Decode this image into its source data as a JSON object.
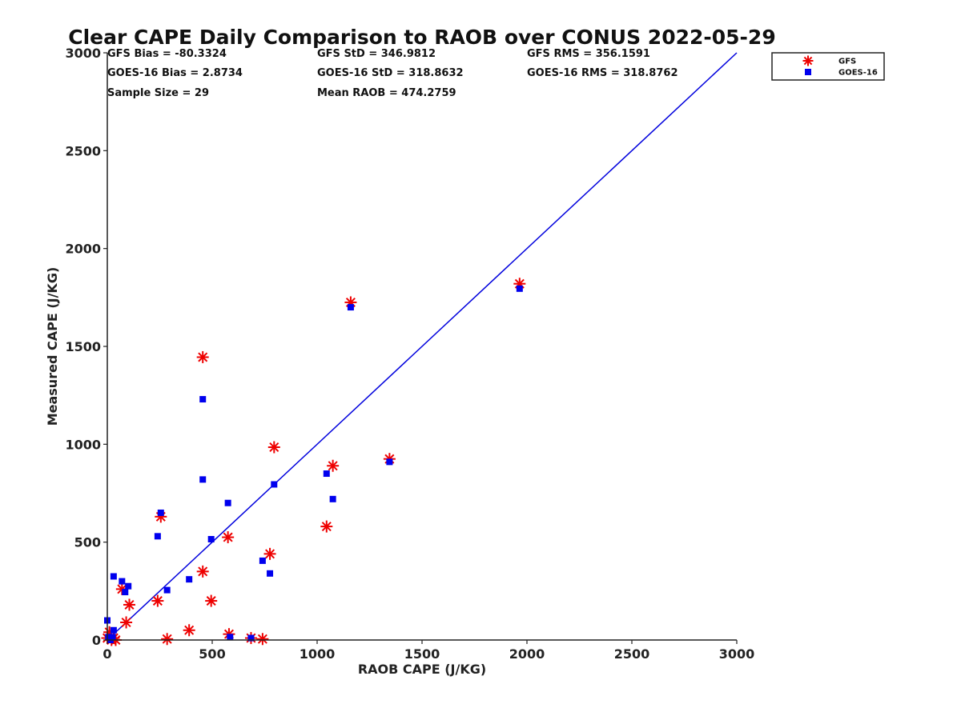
{
  "chart_data": {
    "type": "scatter",
    "title": "Clear CAPE Daily Comparison to RAOB over CONUS 2022-05-29",
    "xlabel": "RAOB CAPE (J/KG)",
    "ylabel": "Measured CAPE (J/KG)",
    "xlim": [
      0,
      3000
    ],
    "ylim": [
      0,
      3000
    ],
    "x_ticks": [
      "0",
      "500",
      "1000",
      "1500",
      "2000",
      "2500",
      "3000"
    ],
    "y_ticks": [
      "0",
      "500",
      "1000",
      "1500",
      "2000",
      "2500",
      "3000"
    ],
    "grid": false,
    "legend_position": "outside top-right",
    "stats": [
      [
        "GFS Bias = -80.3324",
        "GFS StD = 346.9812",
        "GFS RMS = 356.1591"
      ],
      [
        "GOES-16 Bias = 2.8734",
        "GOES-16 StD = 318.8632",
        "GOES-16 RMS = 318.8762"
      ],
      [
        "Sample Size = 29",
        "Mean RAOB = 474.2759",
        ""
      ]
    ],
    "reference_line": {
      "x": [
        0,
        3000
      ],
      "y": [
        0,
        3000
      ],
      "color": "#0000dd"
    },
    "series": [
      {
        "name": "GFS",
        "marker": "asterisk",
        "color": "#ee0000",
        "points": [
          [
            0,
            10
          ],
          [
            10,
            40
          ],
          [
            20,
            0
          ],
          [
            30,
            10
          ],
          [
            40,
            0
          ],
          [
            70,
            260
          ],
          [
            90,
            90
          ],
          [
            105,
            180
          ],
          [
            240,
            200
          ],
          [
            255,
            630
          ],
          [
            285,
            5
          ],
          [
            390,
            50
          ],
          [
            455,
            350
          ],
          [
            455,
            1445
          ],
          [
            495,
            200
          ],
          [
            575,
            525
          ],
          [
            580,
            30
          ],
          [
            685,
            10
          ],
          [
            740,
            5
          ],
          [
            775,
            440
          ],
          [
            795,
            985
          ],
          [
            1045,
            580
          ],
          [
            1075,
            890
          ],
          [
            1160,
            1725
          ],
          [
            1345,
            925
          ],
          [
            1965,
            1820
          ]
        ]
      },
      {
        "name": "GOES-16",
        "marker": "square",
        "color": "#0000ee",
        "points": [
          [
            0,
            100
          ],
          [
            5,
            15
          ],
          [
            15,
            0
          ],
          [
            25,
            15
          ],
          [
            30,
            50
          ],
          [
            30,
            325
          ],
          [
            70,
            300
          ],
          [
            85,
            245
          ],
          [
            100,
            275
          ],
          [
            240,
            530
          ],
          [
            255,
            650
          ],
          [
            285,
            255
          ],
          [
            390,
            310
          ],
          [
            455,
            820
          ],
          [
            455,
            1230
          ],
          [
            495,
            515
          ],
          [
            575,
            700
          ],
          [
            585,
            15
          ],
          [
            685,
            10
          ],
          [
            740,
            405
          ],
          [
            775,
            340
          ],
          [
            795,
            795
          ],
          [
            1045,
            850
          ],
          [
            1075,
            720
          ],
          [
            1160,
            1700
          ],
          [
            1345,
            910
          ],
          [
            1965,
            1795
          ]
        ]
      }
    ]
  }
}
